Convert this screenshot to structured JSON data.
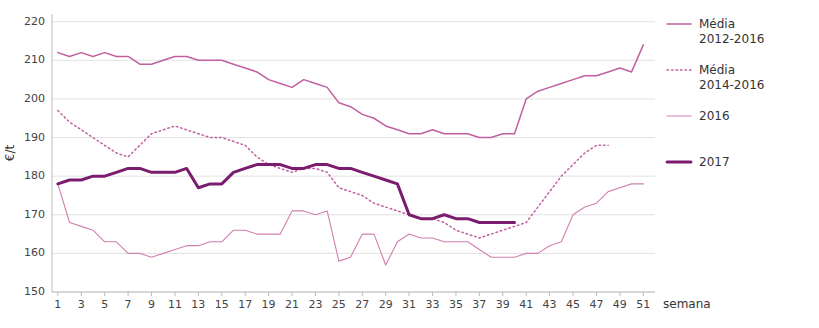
{
  "chart_data": {
    "type": "line",
    "x_label": "semana",
    "y_label": "€/t",
    "x": [
      1,
      2,
      3,
      4,
      5,
      6,
      7,
      8,
      9,
      10,
      11,
      12,
      13,
      14,
      15,
      16,
      17,
      18,
      19,
      20,
      21,
      22,
      23,
      24,
      25,
      26,
      27,
      28,
      29,
      30,
      31,
      32,
      33,
      34,
      35,
      36,
      37,
      38,
      39,
      40,
      41,
      42,
      43,
      44,
      45,
      46,
      47,
      48,
      49,
      50,
      51
    ],
    "xlim": [
      0.5,
      52
    ],
    "xticks": [
      1,
      3,
      5,
      7,
      9,
      11,
      13,
      15,
      17,
      19,
      21,
      23,
      25,
      27,
      29,
      31,
      33,
      35,
      37,
      39,
      41,
      43,
      45,
      47,
      49,
      51
    ],
    "ylim": [
      150,
      222
    ],
    "yticks": [
      150,
      160,
      170,
      180,
      190,
      200,
      210,
      220
    ],
    "grid": true,
    "legend": "right",
    "series": [
      {
        "name": "Média\n2012-2016",
        "color": "#c060a0",
        "line_style": "solid",
        "values": [
          212,
          211,
          212,
          211,
          212,
          211,
          211,
          209,
          209,
          210,
          211,
          211,
          210,
          210,
          210,
          209,
          208,
          207,
          205,
          204,
          203,
          205,
          204,
          203,
          199,
          198,
          196,
          195,
          193,
          192,
          191,
          191,
          192,
          191,
          191,
          191,
          190,
          190,
          191,
          191,
          200,
          202,
          203,
          204,
          205,
          206,
          206,
          207,
          208,
          207,
          214
        ]
      },
      {
        "name": "Média\n2014-2016",
        "color": "#c060a0",
        "line_style": "dotted",
        "values": [
          197,
          194,
          192,
          190,
          188,
          186,
          185,
          188,
          191,
          192,
          193,
          192,
          191,
          190,
          190,
          189,
          188,
          185,
          183,
          182,
          181,
          182,
          182,
          181,
          177,
          176,
          175,
          173,
          172,
          171,
          170,
          169,
          169,
          168,
          166,
          165,
          164,
          165,
          166,
          167,
          168,
          172,
          176,
          180,
          183,
          186,
          188,
          188,
          null,
          null,
          null
        ]
      },
      {
        "name": "2016",
        "color": "#d080b0",
        "line_style": "solid",
        "values": [
          178,
          168,
          167,
          166,
          163,
          163,
          160,
          160,
          159,
          160,
          161,
          162,
          162,
          163,
          163,
          166,
          166,
          165,
          165,
          165,
          171,
          171,
          170,
          171,
          158,
          159,
          165,
          165,
          157,
          163,
          165,
          164,
          164,
          163,
          163,
          163,
          161,
          159,
          159,
          159,
          160,
          160,
          162,
          163,
          170,
          172,
          173,
          176,
          177,
          178,
          178
        ]
      },
      {
        "name": "2017",
        "color": "#7b1c6e",
        "line_style": "solid",
        "values": [
          178,
          179,
          179,
          180,
          180,
          181,
          182,
          182,
          181,
          181,
          181,
          182,
          177,
          178,
          178,
          181,
          182,
          183,
          183,
          183,
          182,
          182,
          183,
          183,
          182,
          182,
          181,
          180,
          179,
          178,
          170,
          169,
          169,
          170,
          169,
          169,
          168,
          168,
          168,
          168,
          null,
          null,
          null,
          null,
          null,
          null,
          null,
          null,
          null,
          null,
          null
        ]
      }
    ]
  }
}
